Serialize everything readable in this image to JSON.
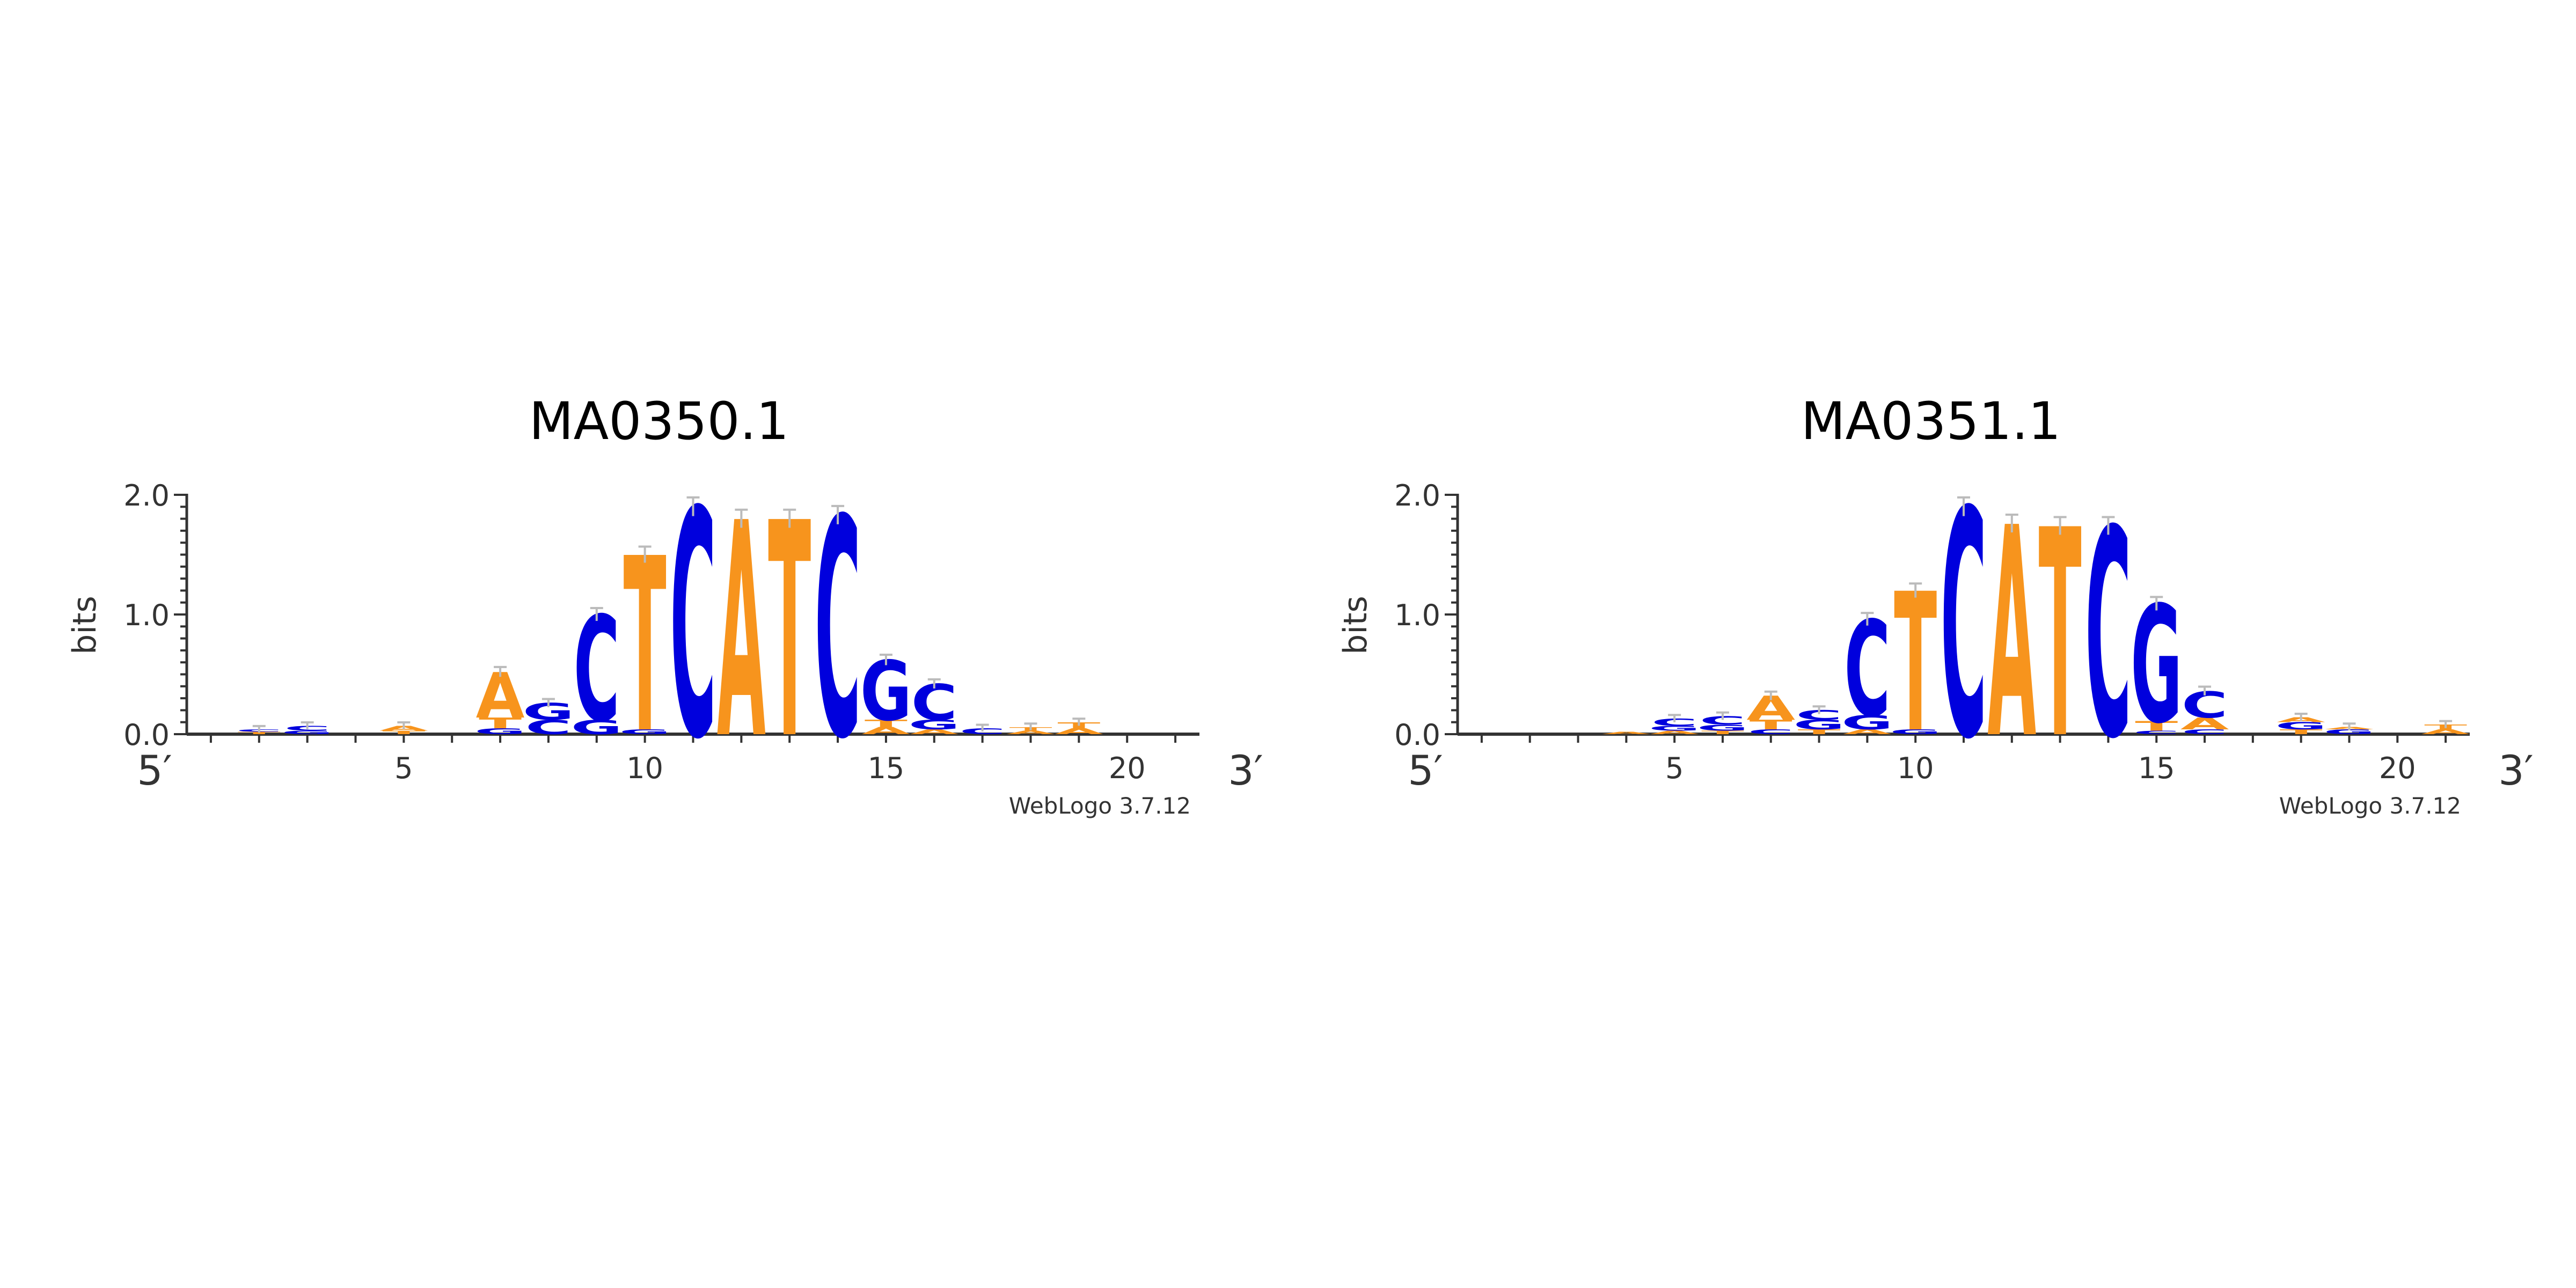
{
  "colors": {
    "A": "#f7941d",
    "T": "#f7941d",
    "C": "#0000dd",
    "G": "#0000dd",
    "error_bar": "#bbbbbb"
  },
  "chart_data": [
    {
      "type": "sequence_logo",
      "title": "MA0350.1",
      "ylabel": "bits",
      "ylim": [
        0,
        2.0
      ],
      "yticks": [
        "0.0",
        "1.0",
        "2.0"
      ],
      "xlim": [
        1,
        21
      ],
      "xticks": [
        "5",
        "10",
        "15",
        "20"
      ],
      "end_labels": [
        "5′",
        "3′"
      ],
      "credit": "WebLogo 3.7.12",
      "positions": [
        {
          "x": 1,
          "letters": []
        },
        {
          "x": 2,
          "letters": [
            [
              "T",
              0.02
            ],
            [
              "C",
              0.02
            ]
          ]
        },
        {
          "x": 3,
          "letters": [
            [
              "G",
              0.03
            ],
            [
              "C",
              0.04
            ]
          ]
        },
        {
          "x": 4,
          "letters": []
        },
        {
          "x": 5,
          "letters": [
            [
              "T",
              0.03
            ],
            [
              "A",
              0.04
            ]
          ]
        },
        {
          "x": 6,
          "letters": []
        },
        {
          "x": 7,
          "letters": [
            [
              "G",
              0.05
            ],
            [
              "T",
              0.09
            ],
            [
              "A",
              0.38
            ]
          ]
        },
        {
          "x": 8,
          "letters": [
            [
              "C",
              0.12
            ],
            [
              "G",
              0.14
            ]
          ]
        },
        {
          "x": 9,
          "letters": [
            [
              "G",
              0.12
            ],
            [
              "C",
              0.88
            ]
          ]
        },
        {
          "x": 10,
          "letters": [
            [
              "G",
              0.04
            ],
            [
              "T",
              1.46
            ]
          ]
        },
        {
          "x": 11,
          "letters": [
            [
              "C",
              1.9
            ]
          ]
        },
        {
          "x": 12,
          "letters": [
            [
              "A",
              1.8
            ]
          ]
        },
        {
          "x": 13,
          "letters": [
            [
              "T",
              1.8
            ]
          ]
        },
        {
          "x": 14,
          "letters": [
            [
              "C",
              1.83
            ]
          ]
        },
        {
          "x": 15,
          "letters": [
            [
              "A",
              0.06
            ],
            [
              "T",
              0.06
            ],
            [
              "G",
              0.5
            ]
          ]
        },
        {
          "x": 16,
          "letters": [
            [
              "A",
              0.04
            ],
            [
              "G",
              0.08
            ],
            [
              "C",
              0.3
            ]
          ]
        },
        {
          "x": 17,
          "letters": [
            [
              "C",
              0.05
            ]
          ]
        },
        {
          "x": 18,
          "letters": [
            [
              "A",
              0.03
            ],
            [
              "T",
              0.03
            ]
          ]
        },
        {
          "x": 19,
          "letters": [
            [
              "A",
              0.05
            ],
            [
              "T",
              0.05
            ]
          ]
        },
        {
          "x": 20,
          "letters": []
        },
        {
          "x": 21,
          "letters": []
        }
      ]
    },
    {
      "type": "sequence_logo",
      "title": "MA0351.1",
      "ylabel": "bits",
      "ylim": [
        0,
        2.0
      ],
      "yticks": [
        "0.0",
        "1.0",
        "2.0"
      ],
      "xlim": [
        1,
        21
      ],
      "xticks": [
        "5",
        "10",
        "15",
        "20"
      ],
      "end_labels": [
        "5′",
        "3′"
      ],
      "credit": "WebLogo 3.7.12",
      "positions": [
        {
          "x": 1,
          "letters": []
        },
        {
          "x": 2,
          "letters": []
        },
        {
          "x": 3,
          "letters": []
        },
        {
          "x": 4,
          "letters": [
            [
              "A",
              0.02
            ]
          ]
        },
        {
          "x": 5,
          "letters": [
            [
              "A",
              0.03
            ],
            [
              "G",
              0.04
            ],
            [
              "C",
              0.06
            ]
          ]
        },
        {
          "x": 6,
          "letters": [
            [
              "T",
              0.03
            ],
            [
              "G",
              0.05
            ],
            [
              "C",
              0.07
            ]
          ]
        },
        {
          "x": 7,
          "letters": [
            [
              "C",
              0.04
            ],
            [
              "T",
              0.08
            ],
            [
              "A",
              0.2
            ]
          ]
        },
        {
          "x": 8,
          "letters": [
            [
              "T",
              0.04
            ],
            [
              "G",
              0.08
            ],
            [
              "C",
              0.08
            ]
          ]
        },
        {
          "x": 9,
          "letters": [
            [
              "A",
              0.04
            ],
            [
              "G",
              0.12
            ],
            [
              "C",
              0.8
            ]
          ]
        },
        {
          "x": 10,
          "letters": [
            [
              "G",
              0.04
            ],
            [
              "T",
              1.16
            ]
          ]
        },
        {
          "x": 11,
          "letters": [
            [
              "C",
              1.9
            ]
          ]
        },
        {
          "x": 12,
          "letters": [
            [
              "A",
              1.76
            ]
          ]
        },
        {
          "x": 13,
          "letters": [
            [
              "T",
              1.74
            ]
          ]
        },
        {
          "x": 14,
          "letters": [
            [
              "C",
              1.74
            ]
          ]
        },
        {
          "x": 15,
          "letters": [
            [
              "C",
              0.03
            ],
            [
              "T",
              0.08
            ],
            [
              "G",
              0.98
            ]
          ]
        },
        {
          "x": 16,
          "letters": [
            [
              "C",
              0.04
            ],
            [
              "A",
              0.1
            ],
            [
              "C",
              0.22
            ]
          ]
        },
        {
          "x": 17,
          "letters": []
        },
        {
          "x": 18,
          "letters": [
            [
              "T",
              0.04
            ],
            [
              "G",
              0.06
            ],
            [
              "A",
              0.04
            ]
          ]
        },
        {
          "x": 19,
          "letters": [
            [
              "G",
              0.04
            ],
            [
              "A",
              0.02
            ]
          ]
        },
        {
          "x": 20,
          "letters": []
        },
        {
          "x": 21,
          "letters": [
            [
              "A",
              0.04
            ],
            [
              "T",
              0.04
            ]
          ]
        }
      ]
    }
  ]
}
